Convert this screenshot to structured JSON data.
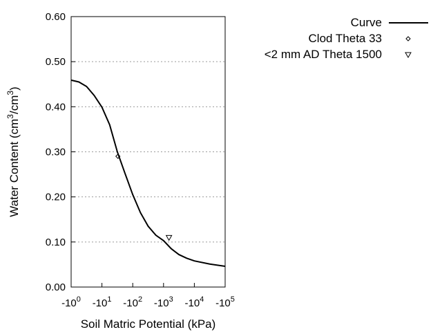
{
  "chart_data": {
    "type": "line",
    "xlabel": "Soil Matric Potential (kPa)",
    "ylabel": "Water Content (cm3/cm3)",
    "x_scale": "log",
    "xlim": [
      1,
      100000
    ],
    "ylim": [
      0,
      0.6
    ],
    "x_tick_labels": [
      {
        "base": "-10",
        "exp": "0"
      },
      {
        "base": "-10",
        "exp": "1"
      },
      {
        "base": "-10",
        "exp": "2"
      },
      {
        "base": "-10",
        "exp": "3"
      },
      {
        "base": "-10",
        "exp": "4"
      },
      {
        "base": "-10",
        "exp": "5"
      }
    ],
    "y_ticks": [
      0,
      0.1,
      0.2,
      0.3,
      0.4,
      0.5,
      0.6
    ],
    "y_tick_labels": [
      "0.00",
      "0.10",
      "0.20",
      "0.30",
      "0.40",
      "0.50",
      "0.60"
    ],
    "grid": "horizontal dotted",
    "legend_placement": "outside top-right",
    "series": [
      {
        "name": "Curve",
        "style": "line",
        "x": [
          1,
          1.78,
          3.16,
          5.62,
          10,
          17.8,
          31.6,
          56.2,
          100,
          178,
          316,
          562,
          1000,
          1778,
          3162,
          5623,
          10000,
          31623,
          100000
        ],
        "y": [
          0.459,
          0.455,
          0.445,
          0.425,
          0.399,
          0.36,
          0.3,
          0.252,
          0.205,
          0.165,
          0.135,
          0.115,
          0.103,
          0.085,
          0.072,
          0.064,
          0.058,
          0.051,
          0.046
        ]
      },
      {
        "name": "Clod Theta 33",
        "style": "diamond",
        "x": [
          33
        ],
        "y": [
          0.29
        ]
      },
      {
        "name": "<2 mm AD Theta 1500",
        "style": "triangle-down",
        "x": [
          1500
        ],
        "y": [
          0.11
        ]
      }
    ]
  }
}
